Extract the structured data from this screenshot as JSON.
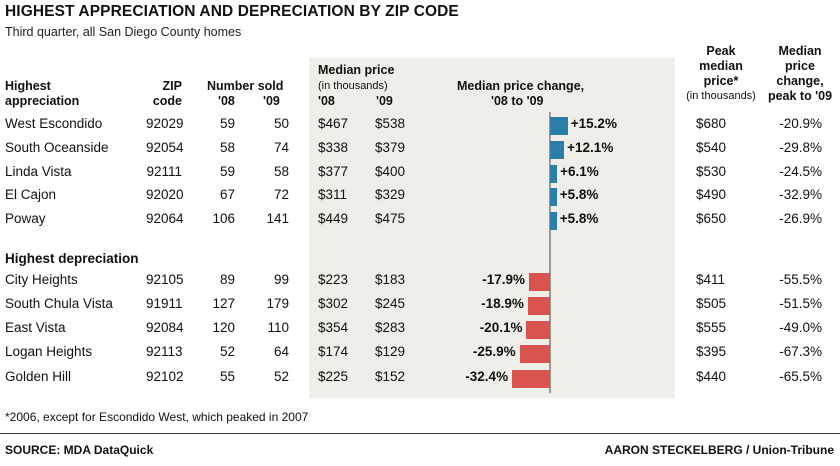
{
  "title": "HIGHEST APPRECIATION AND DEPRECIATION BY ZIP CODE",
  "subtitle": "Third quarter, all San Diego County homes",
  "headers": {
    "area_line1": "Highest",
    "area_line2": "appreciation",
    "zip_line1": "ZIP",
    "zip_line2": "code",
    "sold_line1": "Number sold",
    "sold_y1": "'08",
    "sold_y2": "'09",
    "median_line1": "Median price",
    "median_line2": "(in thousands)",
    "median_y1": "'08",
    "median_y2": "'09",
    "change_line1": "Median price change,",
    "change_line2": "'08 to '09",
    "peak_line1": "Peak",
    "peak_line2": "median",
    "peak_line3": "price*",
    "peak_line4": "(in thousands)",
    "pchg_line1": "Median",
    "pchg_line2": "price",
    "pchg_line3": "change,",
    "pchg_line4": "peak to '09"
  },
  "section_depreciation": "Highest depreciation",
  "colors": {
    "positive_bar": "#2a7ea8",
    "negative_bar": "#d9534f",
    "band": "#efeee8"
  },
  "appreciation_rows": [
    {
      "area": "West Escondido",
      "zip": "92029",
      "sold08": "59",
      "sold09": "50",
      "price08": "$467",
      "price09": "$538",
      "change_label": "+15.2%",
      "peak": "$680",
      "peak_change": "-20.9%"
    },
    {
      "area": "South Oceanside",
      "zip": "92054",
      "sold08": "58",
      "sold09": "74",
      "price08": "$338",
      "price09": "$379",
      "change_label": "+12.1%",
      "peak": "$540",
      "peak_change": "-29.8%"
    },
    {
      "area": "Linda Vista",
      "zip": "92111",
      "sold08": "59",
      "sold09": "58",
      "price08": "$377",
      "price09": "$400",
      "change_label": "+6.1%",
      "peak": "$530",
      "peak_change": "-24.5%"
    },
    {
      "area": "El Cajon",
      "zip": "92020",
      "sold08": "67",
      "sold09": "72",
      "price08": "$311",
      "price09": "$329",
      "change_label": "+5.8%",
      "peak": "$490",
      "peak_change": "-32.9%"
    },
    {
      "area": "Poway",
      "zip": "92064",
      "sold08": "106",
      "sold09": "141",
      "price08": "$449",
      "price09": "$475",
      "change_label": "+5.8%",
      "peak": "$650",
      "peak_change": "-26.9%"
    }
  ],
  "depreciation_rows": [
    {
      "area": "City Heights",
      "zip": "92105",
      "sold08": "89",
      "sold09": "99",
      "price08": "$223",
      "price09": "$183",
      "change_label": "-17.9%",
      "peak": "$411",
      "peak_change": "-55.5%"
    },
    {
      "area": "South Chula Vista",
      "zip": "91911",
      "sold08": "127",
      "sold09": "179",
      "price08": "$302",
      "price09": "$245",
      "change_label": "-18.9%",
      "peak": "$505",
      "peak_change": "-51.5%"
    },
    {
      "area": "East Vista",
      "zip": "92084",
      "sold08": "120",
      "sold09": "110",
      "price08": "$354",
      "price09": "$283",
      "change_label": "-20.1%",
      "peak": "$555",
      "peak_change": "-49.0%"
    },
    {
      "area": "Logan Heights",
      "zip": "92113",
      "sold08": "52",
      "sold09": "64",
      "price08": "$174",
      "price09": "$129",
      "change_label": "-25.9%",
      "peak": "$395",
      "peak_change": "-67.3%"
    },
    {
      "area": "Golden Hill",
      "zip": "92102",
      "sold08": "55",
      "sold09": "52",
      "price08": "$225",
      "price09": "$152",
      "change_label": "-32.4%",
      "peak": "$440",
      "peak_change": "-65.5%"
    }
  ],
  "chart_data": {
    "type": "bar",
    "categories": [
      "West Escondido",
      "South Oceanside",
      "Linda Vista",
      "El Cajon",
      "Poway",
      "City Heights",
      "South Chula Vista",
      "East Vista",
      "Logan Heights",
      "Golden Hill"
    ],
    "values": [
      15.2,
      12.1,
      6.1,
      5.8,
      5.8,
      -17.9,
      -18.9,
      -20.1,
      -25.9,
      -32.4
    ],
    "title": "Median price change, '08 to '09",
    "xlabel": "",
    "ylabel": "",
    "ylim": [
      -32.4,
      15.2
    ]
  },
  "footnote": "*2006, except for Escondido West, which peaked in 2007",
  "source": "SOURCE: MDA DataQuick",
  "credit": "AARON STECKELBERG / Union-Tribune"
}
